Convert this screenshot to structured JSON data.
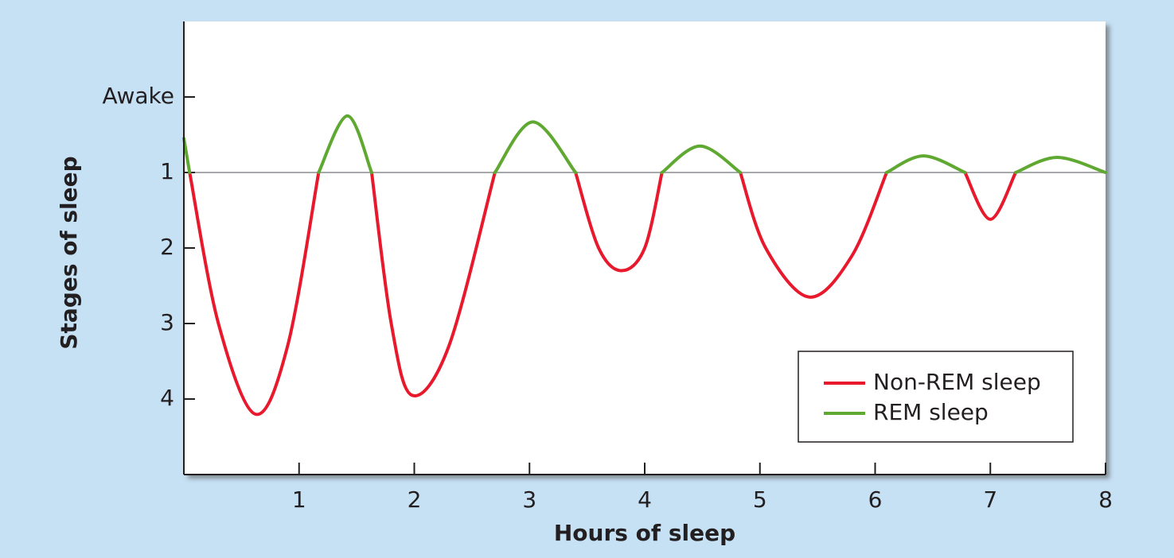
{
  "chart_data": {
    "type": "line",
    "xlabel": "Hours of sleep",
    "ylabel": "Stages of sleep",
    "x": [
      0,
      0.05,
      0.3,
      0.62,
      0.9,
      1.17,
      1.42,
      1.63,
      1.8,
      1.98,
      2.3,
      2.7,
      3.03,
      3.4,
      3.6,
      3.8,
      4.0,
      4.15,
      4.48,
      4.83,
      5.05,
      5.43,
      5.8,
      6.1,
      6.42,
      6.78,
      7.0,
      7.22,
      7.58,
      8.0
    ],
    "series": [
      {
        "name": "Non-REM sleep",
        "color": "#e8192c",
        "values": [
          null,
          1,
          3,
          4.2,
          3.3,
          1,
          null,
          1,
          3,
          3.95,
          3.3,
          1,
          null,
          1,
          2,
          2.3,
          2,
          1,
          null,
          1,
          2,
          2.65,
          2.1,
          1,
          null,
          1,
          1.62,
          1,
          null,
          1
        ]
      },
      {
        "name": "REM sleep",
        "color": "#5fa831",
        "values": [
          0.55,
          1,
          null,
          null,
          null,
          1,
          0.25,
          1,
          null,
          null,
          null,
          1,
          0.33,
          1,
          null,
          null,
          null,
          1,
          0.65,
          1,
          null,
          null,
          null,
          1,
          0.78,
          1,
          null,
          1,
          0.8,
          1
        ]
      }
    ],
    "xlim": [
      0,
      8
    ],
    "xticks": [
      1,
      2,
      3,
      4,
      5,
      6,
      7,
      8
    ],
    "ylim": [
      5,
      -1
    ],
    "yticks": [
      {
        "value": 0,
        "label": "Awake"
      },
      1,
      2,
      3,
      4
    ],
    "reference_line": 1,
    "legend": "lower right"
  }
}
